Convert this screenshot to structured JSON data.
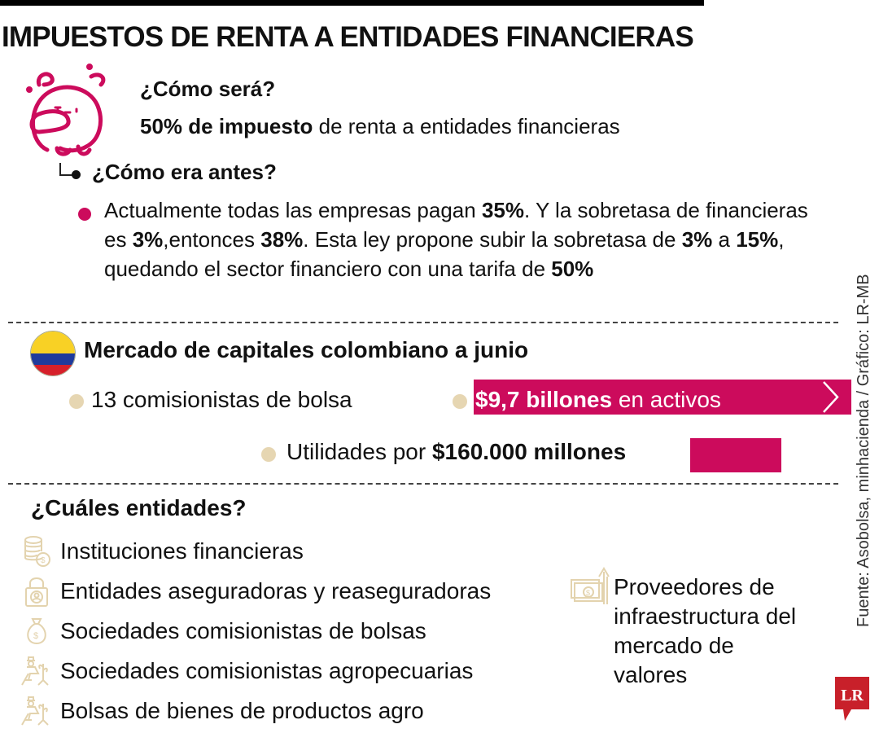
{
  "header": {
    "title": "IMPUESTOS DE RENTA A ENTIDADES FINANCIERAS"
  },
  "section_future": {
    "question": "¿Cómo será?",
    "answer_bold": "50% de impuesto",
    "answer_rest": " de renta a entidades financieras",
    "icon": "thinking-mascot-icon"
  },
  "section_before": {
    "question": "¿Cómo era antes?",
    "text_parts": [
      {
        "t": "Actualmente todas las empresas pagan ",
        "b": false
      },
      {
        "t": "35%",
        "b": true
      },
      {
        "t": ". Y la sobretasa de financieras es ",
        "b": false
      },
      {
        "t": "3%",
        "b": true
      },
      {
        "t": ",entonces ",
        "b": false
      },
      {
        "t": "38%",
        "b": true
      },
      {
        "t": ". Esta ley propone subir la sobretasa de ",
        "b": false
      },
      {
        "t": "3%",
        "b": true
      },
      {
        "t": " a ",
        "b": false
      },
      {
        "t": "15%",
        "b": true
      },
      {
        "t": ", quedando el sector financiero con una tarifa de ",
        "b": false
      },
      {
        "t": "50%",
        "b": true
      }
    ]
  },
  "market": {
    "title": "Mercado de capitales colombiano a junio",
    "flag_icon": "colombia-flag-icon",
    "stats": {
      "brokers": "13 comisionistas de bolsa",
      "assets_bold": "$9,7 billones",
      "assets_rest": " en activos",
      "profits_pre": "Utilidades por ",
      "profits_bold": "$160.000 millones"
    }
  },
  "entities": {
    "question": "¿Cuáles entidades?",
    "items": [
      {
        "label": "Instituciones financieras",
        "icon": "coins-stack-icon"
      },
      {
        "label": "Entidades aseguradoras y reaseguradoras",
        "icon": "padlock-person-icon"
      },
      {
        "label": "Sociedades comisionistas de bolsas",
        "icon": "money-bag-icon"
      },
      {
        "label": "Sociedades comisionistas agropecuarias",
        "icon": "farmer-plant-icon"
      },
      {
        "label": "Bolsas de bienes de productos agro",
        "icon": "farmer-plant-icon"
      }
    ],
    "infra": {
      "label": "Proveedores de infraestructura del mercado de valores",
      "icon": "banknote-arrow-up-icon"
    }
  },
  "footer": {
    "source": "Fuente: Asobolsa, minhacienda / Gráfico: LR-MB",
    "logo_text": "LR"
  },
  "colors": {
    "accent_pink": "#cc0b5c",
    "beige": "#e6d6b2",
    "icon_beige": "#e3d3ae",
    "logo_red": "#c8202a"
  }
}
